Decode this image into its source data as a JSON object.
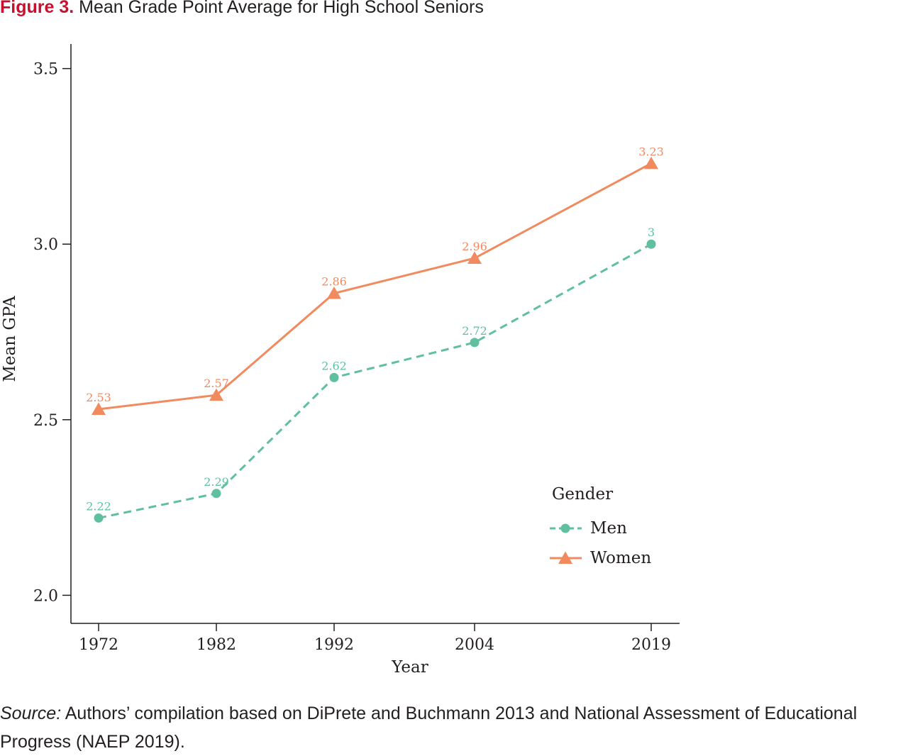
{
  "figure": {
    "label": "Figure 3.",
    "title": "Mean Grade Point Average for High School Seniors"
  },
  "chart_data": {
    "type": "line",
    "categories": [
      "1972",
      "1982",
      "1992",
      "2004",
      "2019"
    ],
    "x": [
      1972,
      1982,
      1992,
      2004,
      2019
    ],
    "series": [
      {
        "name": "Men",
        "values": [
          2.22,
          2.29,
          2.62,
          2.72,
          3.0
        ],
        "labels": [
          "2.22",
          "2.29",
          "2.62",
          "2.72",
          "3"
        ],
        "color": "#5fbf9f",
        "marker": "circle",
        "line_style": "dashed"
      },
      {
        "name": "Women",
        "values": [
          2.53,
          2.57,
          2.86,
          2.96,
          3.23
        ],
        "labels": [
          "2.53",
          "2.57",
          "2.86",
          "2.96",
          "3.23"
        ],
        "color": "#f28a5f",
        "marker": "triangle",
        "line_style": "solid"
      }
    ],
    "xlabel": "Year",
    "ylabel": "Mean GPA",
    "ylim": [
      1.92,
      3.57
    ],
    "yticks": [
      "2.0",
      "2.5",
      "3.0",
      "3.5"
    ],
    "grid": false,
    "legend": {
      "title": "Gender",
      "position": "bottom-right"
    }
  },
  "source": {
    "label": "Source:",
    "text": " Authors’ compilation based on DiPrete and Buchmann 2013 and National Assessment of Educational Progress (NAEP 2019)."
  }
}
